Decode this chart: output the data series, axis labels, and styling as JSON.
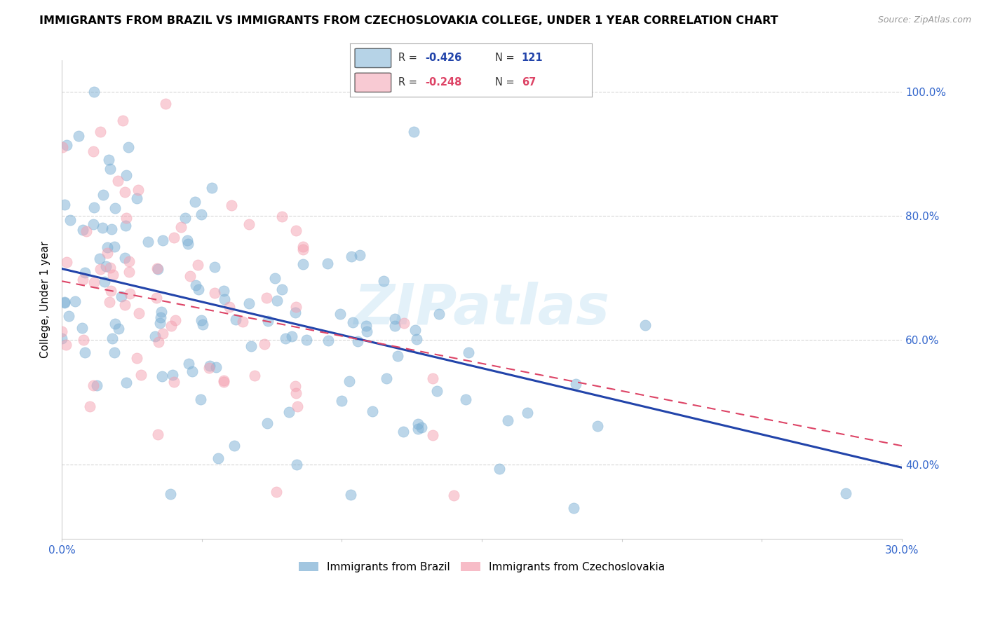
{
  "title": "IMMIGRANTS FROM BRAZIL VS IMMIGRANTS FROM CZECHOSLOVAKIA COLLEGE, UNDER 1 YEAR CORRELATION CHART",
  "source": "Source: ZipAtlas.com",
  "ylabel": "College, Under 1 year",
  "right_ytick_labels": [
    "100.0%",
    "80.0%",
    "60.0%",
    "40.0%"
  ],
  "right_ytick_values": [
    1.0,
    0.8,
    0.6,
    0.4
  ],
  "xlim": [
    0.0,
    0.3
  ],
  "ylim": [
    0.28,
    1.05
  ],
  "brazil_R": -0.426,
  "brazil_N": 121,
  "czech_R": -0.248,
  "czech_N": 67,
  "brazil_color": "#7BAFD4",
  "czech_color": "#F4A0B0",
  "brazil_line_color": "#2244AA",
  "czech_line_color": "#DD4466",
  "legend_brazil_label": "Immigrants from Brazil",
  "legend_czech_label": "Immigrants from Czechoslovakia",
  "watermark": "ZIPatlas",
  "background_color": "#ffffff",
  "grid_color": "#cccccc",
  "title_fontsize": 11.5,
  "axis_label_fontsize": 11,
  "tick_fontsize": 11,
  "brazil_line_y0": 0.715,
  "brazil_line_y1": 0.395,
  "czech_line_y0": 0.695,
  "czech_line_y1": 0.43
}
